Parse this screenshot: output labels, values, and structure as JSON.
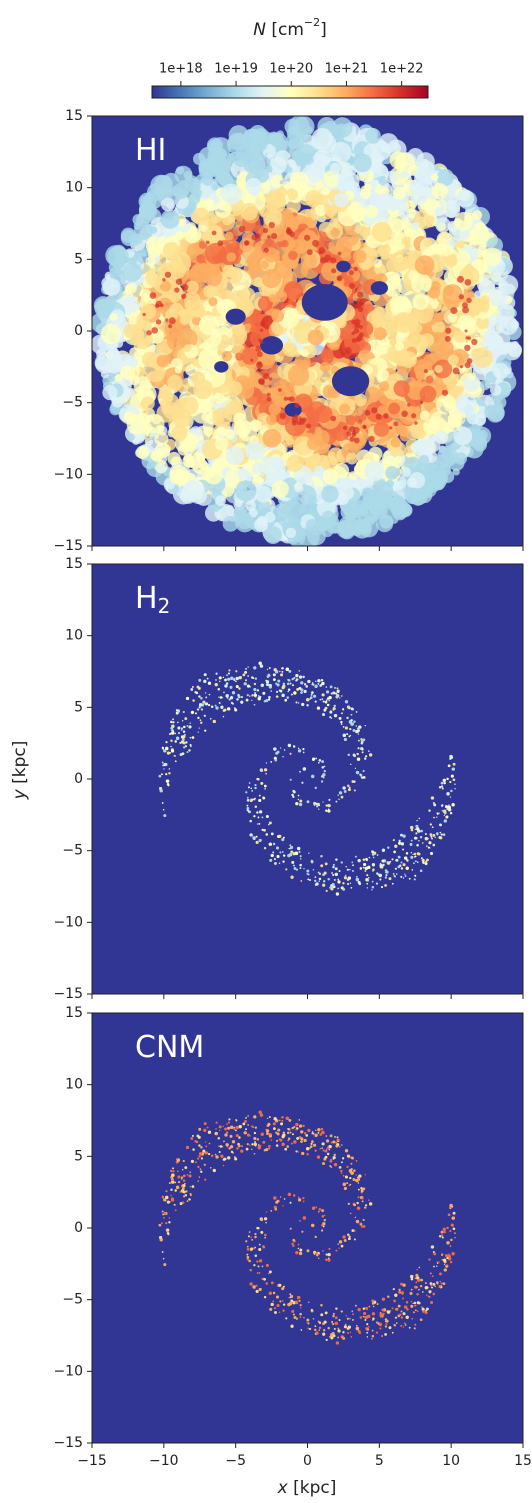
{
  "chart_data": {
    "type": "heatmap",
    "panels": [
      {
        "label": [
          "HI"
        ]
      },
      {
        "label": [
          "H",
          "2"
        ]
      },
      {
        "label": [
          "CNM"
        ]
      }
    ],
    "xlabel": [
      "x",
      " [kpc]"
    ],
    "ylabel": [
      "y",
      " [kpc]"
    ],
    "xlim": [
      -15,
      15
    ],
    "ylim": [
      -15,
      15
    ],
    "xticks": [
      {
        "value": -15,
        "label": "−15"
      },
      {
        "value": -10,
        "label": "−10"
      },
      {
        "value": -5,
        "label": "−5"
      },
      0,
      5,
      10,
      15
    ],
    "yticks": [
      {
        "value": -15,
        "label": "−15"
      },
      {
        "value": -10,
        "label": "−10"
      },
      {
        "value": -5,
        "label": "−5"
      },
      0,
      5,
      10,
      15
    ],
    "colorbar": {
      "label": [
        "N",
        " [cm",
        "−2",
        "]"
      ],
      "log": true,
      "lim": [
        3e+17,
        3e+22
      ],
      "ticks": [
        {
          "value": 1e+18,
          "label": "1e+18"
        },
        {
          "value": 1e+19,
          "label": "1e+19"
        },
        {
          "value": 1e+20,
          "label": "1e+20"
        },
        {
          "value": 1e+21,
          "label": "1e+21"
        },
        {
          "value": 1e+22,
          "label": "1e+22"
        }
      ],
      "colors": [
        "#313695",
        "#4575b4",
        "#74add1",
        "#abd9e9",
        "#e0f3f8",
        "#ffffbf",
        "#fee090",
        "#fdae61",
        "#f46d43",
        "#d73027",
        "#a50026"
      ]
    }
  }
}
